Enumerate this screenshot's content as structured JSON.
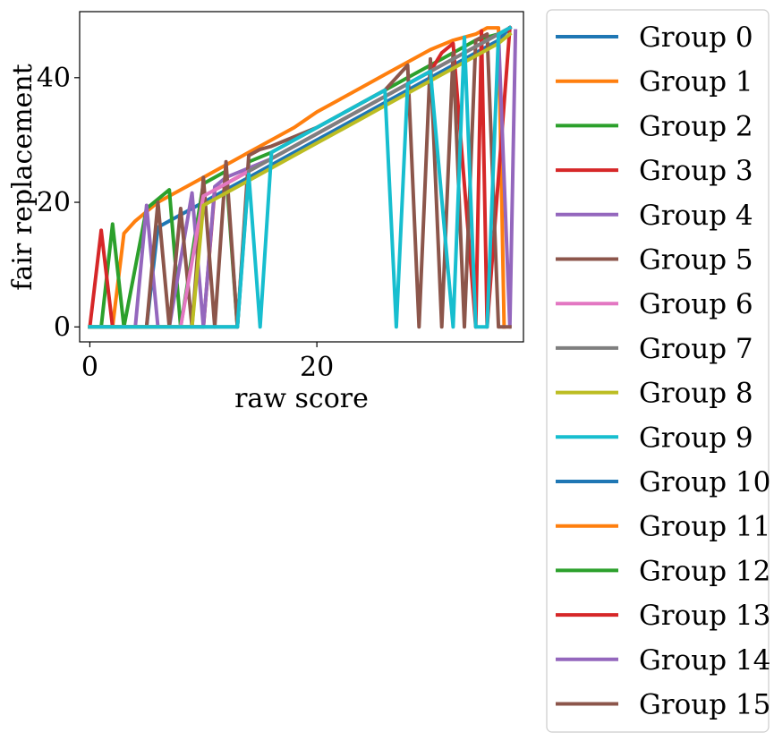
{
  "chart_data": {
    "type": "line",
    "xlabel": "raw score",
    "ylabel": "fair replacement",
    "xlim": [
      -0.9,
      38.2
    ],
    "ylim": [
      -2.4,
      50.6
    ],
    "xticks": [
      0,
      20
    ],
    "yticks": [
      0,
      20,
      40
    ],
    "grid": false,
    "legend_position": "outside-right",
    "series": [
      {
        "name": "Group 0",
        "color": "#1f77b4",
        "x": [
          0,
          5,
          6,
          8,
          10,
          12,
          14,
          16,
          18,
          20,
          22,
          24,
          26,
          28,
          30,
          32,
          34,
          36,
          37
        ],
        "y": [
          0,
          0,
          16,
          18,
          20,
          22,
          24,
          26,
          28,
          30,
          32,
          34,
          36,
          38,
          40,
          42,
          44,
          46,
          48
        ]
      },
      {
        "name": "Group 1",
        "color": "#ff7f0e",
        "x": [
          0,
          2,
          3,
          4,
          5,
          6,
          8,
          10,
          12,
          14,
          16,
          18,
          20,
          22,
          24,
          26,
          28,
          30,
          32,
          34,
          35,
          36,
          36.5
        ],
        "y": [
          0,
          0,
          15,
          17,
          18.5,
          20,
          22,
          24,
          26,
          28,
          30,
          32,
          34.5,
          36.5,
          38.5,
          40.5,
          42.5,
          44.5,
          46,
          47,
          48,
          48,
          0
        ]
      },
      {
        "name": "Group 2",
        "color": "#2ca02c",
        "x": [
          0,
          1,
          2,
          3,
          5,
          6,
          7,
          8,
          10,
          12,
          13,
          14,
          16,
          18,
          20,
          22,
          24,
          26,
          28,
          30,
          32,
          34,
          36,
          37
        ],
        "y": [
          0,
          0,
          16.5,
          0,
          19,
          20.5,
          22,
          0,
          23,
          25,
          0,
          26.5,
          28,
          30,
          32,
          34,
          36,
          38,
          40,
          42,
          44,
          46,
          47,
          48
        ]
      },
      {
        "name": "Group 3",
        "color": "#d62728",
        "x": [
          0,
          1,
          2,
          3,
          10,
          11,
          12,
          14,
          16,
          18,
          20,
          22,
          24,
          26,
          28,
          30,
          31,
          32,
          34,
          34.5,
          35,
          37
        ],
        "y": [
          0,
          15.5,
          0,
          0,
          0,
          22,
          23,
          25,
          27,
          29,
          31,
          33,
          35,
          37,
          39,
          41,
          44,
          45.5,
          0,
          47.5,
          0,
          48
        ]
      },
      {
        "name": "Group 4",
        "color": "#9467bd",
        "x": [
          0,
          4,
          5,
          6,
          7,
          9,
          10,
          11,
          12,
          14,
          16,
          18,
          20,
          22,
          24,
          26,
          28,
          30,
          32,
          34,
          36,
          37,
          37.5
        ],
        "y": [
          0,
          0,
          19.5,
          0,
          0,
          21.5,
          0,
          22.5,
          24,
          25.5,
          27,
          29,
          31,
          33,
          35,
          37,
          39,
          41,
          43,
          45,
          47,
          0,
          47.5
        ]
      },
      {
        "name": "Group 5",
        "color": "#8c564b",
        "x": [
          0,
          5,
          6,
          7,
          8,
          9,
          10,
          11,
          12,
          13,
          14,
          15,
          16,
          18,
          20,
          22,
          24,
          26,
          27,
          28,
          29,
          30,
          31,
          32,
          33,
          34,
          35,
          36,
          37
        ],
        "y": [
          0,
          0,
          20,
          0,
          19,
          0,
          24,
          0,
          26.5,
          0,
          27.5,
          28.5,
          29,
          30.5,
          32,
          34,
          36,
          38,
          40,
          42,
          0,
          43,
          0,
          44,
          0,
          46,
          47,
          0,
          0
        ]
      },
      {
        "name": "Group 6",
        "color": "#e377c2",
        "x": [
          0,
          8,
          10,
          12,
          14,
          16,
          18,
          20,
          22,
          24,
          26,
          28,
          30,
          32,
          34,
          36,
          37
        ],
        "y": [
          0,
          0,
          21,
          23,
          25,
          27,
          29,
          31,
          33,
          35,
          37,
          39,
          41,
          43,
          45,
          47,
          48
        ]
      },
      {
        "name": "Group 7",
        "color": "#7f7f7f",
        "x": [
          0,
          13,
          14,
          16,
          18,
          20,
          22,
          24,
          26,
          28,
          30,
          32,
          34,
          36,
          37
        ],
        "y": [
          0,
          0,
          25,
          27,
          29,
          31,
          33,
          35,
          37,
          39,
          41,
          43,
          45,
          47,
          48
        ]
      },
      {
        "name": "Group 8",
        "color": "#bcbd22",
        "x": [
          0,
          9,
          10,
          12,
          14,
          16,
          18,
          20,
          22,
          24,
          26,
          28,
          30,
          32,
          34,
          36,
          37
        ],
        "y": [
          0,
          0,
          19.5,
          21.5,
          23.5,
          25.5,
          27.5,
          29.5,
          31.5,
          33.5,
          35.5,
          37.5,
          39.5,
          41.5,
          43.5,
          45.5,
          47
        ]
      },
      {
        "name": "Group 9",
        "color": "#17becf",
        "x": [
          0,
          13,
          14,
          15,
          16,
          18,
          20,
          22,
          24,
          26,
          27,
          28,
          30,
          32,
          33,
          34,
          35,
          36,
          37
        ],
        "y": [
          0,
          0,
          24.5,
          0,
          28,
          30,
          32,
          34,
          36,
          38,
          0,
          39,
          41,
          0,
          46.5,
          0,
          0,
          47,
          48
        ]
      },
      {
        "name": "Group 10",
        "color": "#1f77b4",
        "x": [],
        "y": []
      },
      {
        "name": "Group 11",
        "color": "#ff7f0e",
        "x": [],
        "y": []
      },
      {
        "name": "Group 12",
        "color": "#2ca02c",
        "x": [],
        "y": []
      },
      {
        "name": "Group 13",
        "color": "#d62728",
        "x": [],
        "y": []
      },
      {
        "name": "Group 14",
        "color": "#9467bd",
        "x": [],
        "y": []
      },
      {
        "name": "Group 15",
        "color": "#8c564b",
        "x": [],
        "y": []
      }
    ]
  }
}
